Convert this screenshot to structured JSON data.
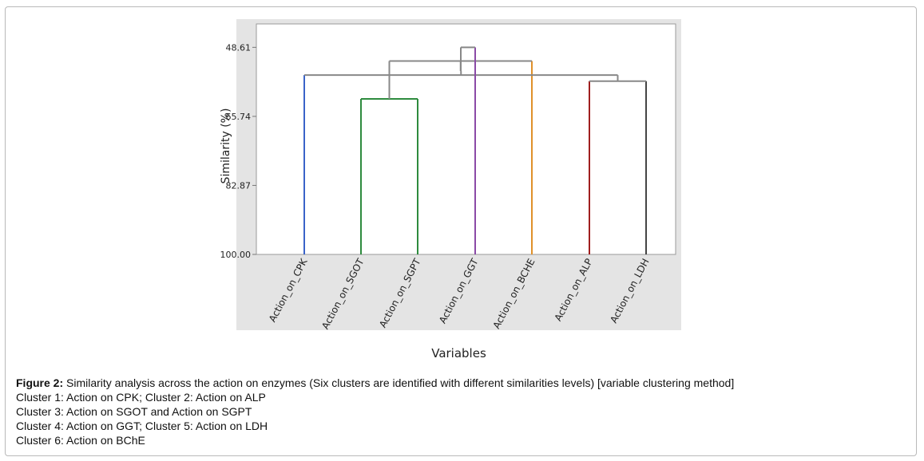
{
  "chart_data": {
    "type": "dendrogram",
    "ylabel": "Similarity (%)",
    "xlabel": "Variables",
    "y_ticks": [
      "48.61",
      "65.74",
      "82.87",
      "100.00"
    ],
    "ylim": [
      100.0,
      42.8
    ],
    "leaves": [
      {
        "label": "Action_on_CPK",
        "color": "#3a63c8"
      },
      {
        "label": "Action_on_SGOT",
        "color": "#2e8b3e"
      },
      {
        "label": "Action_on_SGPT",
        "color": "#2e8b3e"
      },
      {
        "label": "Action_on_GGT",
        "color": "#8a4aa6"
      },
      {
        "label": "Action_on_BCHE",
        "color": "#e0912a"
      },
      {
        "label": "Action_on_ALP",
        "color": "#a01e1e"
      },
      {
        "label": "Action_on_LDH",
        "color": "#444444"
      }
    ],
    "merges": [
      {
        "left": 1,
        "right": 2,
        "similarity": 61.4,
        "color": "#2e8b3e"
      },
      {
        "left": 5,
        "right": 6,
        "similarity": 57.0,
        "color": "#888888"
      },
      {
        "left": 4,
        "right": 7,
        "similarity": 52.0,
        "color": "#888888"
      },
      {
        "left": 0,
        "right": 8,
        "similarity": 55.5,
        "color": "#888888"
      },
      {
        "left": 9,
        "right": 10,
        "similarity": 54.5,
        "color": "#888888"
      },
      {
        "left": 3,
        "right": 11,
        "similarity": 48.61,
        "color": "#888888"
      }
    ]
  },
  "caption": {
    "figure_label": "Figure 2:",
    "figure_text": " Similarity analysis across the action on enzymes (Six clusters are identified with different similarities levels) [variable clustering method]",
    "lines": [
      "Cluster 1: Action on CPK; Cluster 2: Action on ALP",
      "Cluster 3: Action on SGOT and Action on SGPT",
      "Cluster 4: Action on GGT; Cluster 5: Action on LDH",
      "Cluster 6: Action on BChE"
    ]
  }
}
